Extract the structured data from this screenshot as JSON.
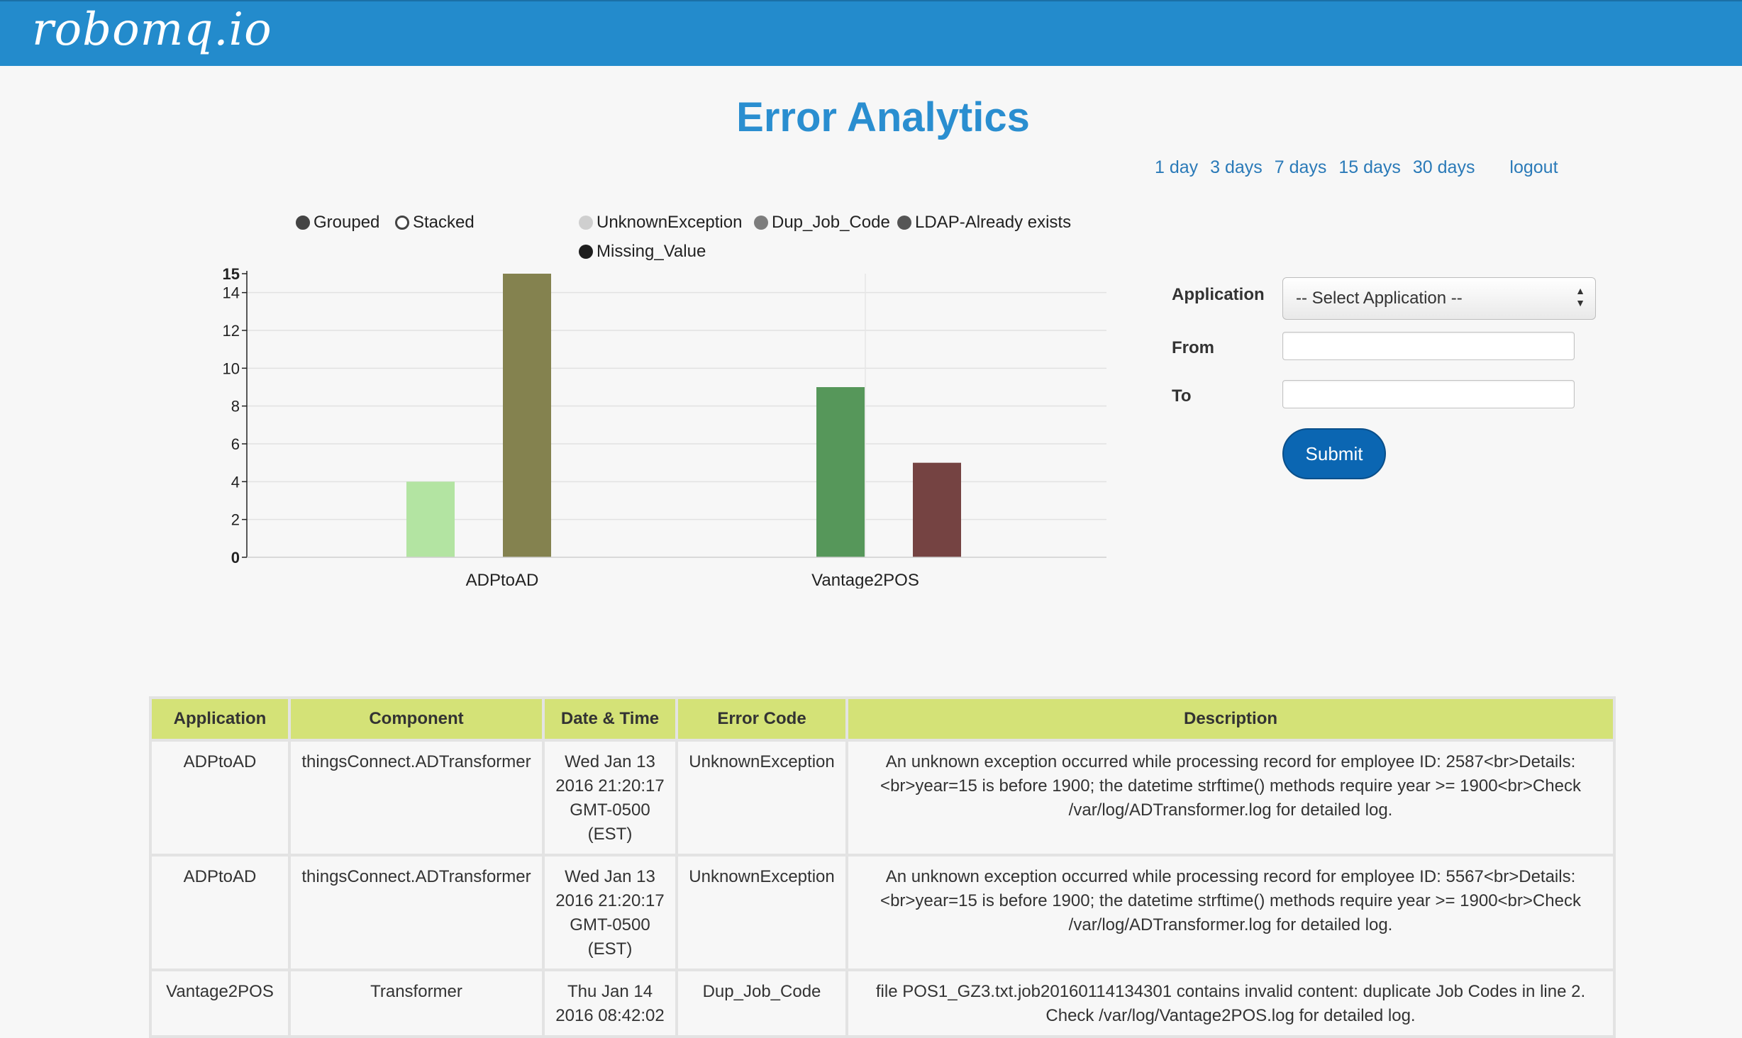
{
  "header": {
    "brand": "robomq.io"
  },
  "page": {
    "title": "Error Analytics"
  },
  "range_links": {
    "day1": "1 day",
    "day3": "3 days",
    "day7": "7 days",
    "day15": "15 days",
    "day30": "30 days",
    "logout": "logout"
  },
  "mode_toggle": {
    "grouped": "Grouped",
    "stacked": "Stacked"
  },
  "legend": {
    "unknown_exception": "UnknownException",
    "dup_job_code": "Dup_Job_Code",
    "ldap_exists": "LDAP-Already exists",
    "missing_value": "Missing_Value"
  },
  "colors": {
    "header_bg": "#238bcc",
    "title": "#2a8ed0",
    "bar_unknown_exception": "#b3e4a2",
    "bar_dup_job_code": "#84824f",
    "bar_ldap_exists": "#56975a",
    "bar_missing_value": "#754342",
    "table_header_bg": "#d4e277",
    "submit_bg": "#0b66b2"
  },
  "chart_data": {
    "type": "bar",
    "mode": "grouped",
    "categories": [
      "ADPtoAD",
      "Vantage2POS"
    ],
    "series": [
      {
        "name": "UnknownException",
        "values": [
          4,
          0
        ],
        "color": "#b3e4a2"
      },
      {
        "name": "Dup_Job_Code",
        "values": [
          15,
          0
        ],
        "color": "#84824f"
      },
      {
        "name": "LDAP-Already exists",
        "values": [
          0,
          9
        ],
        "color": "#56975a"
      },
      {
        "name": "Missing_Value",
        "values": [
          0,
          5
        ],
        "color": "#754342"
      }
    ],
    "bars": [
      {
        "category": "ADPtoAD",
        "series": "UnknownException",
        "value": 4,
        "color": "#b3e4a2",
        "slot": 1
      },
      {
        "category": "ADPtoAD",
        "series": "Dup_Job_Code",
        "value": 15,
        "color": "#84824f",
        "slot": 2
      },
      {
        "category": "Vantage2POS",
        "series": "LDAP-Already exists",
        "value": 9,
        "color": "#56975a",
        "slot": 0
      },
      {
        "category": "Vantage2POS",
        "series": "Missing_Value",
        "value": 5,
        "color": "#754342",
        "slot": 1
      }
    ],
    "yticks": [
      0,
      2,
      4,
      6,
      8,
      10,
      12,
      14,
      15
    ],
    "ylim": [
      0,
      15
    ],
    "xlabel": "",
    "ylabel": "",
    "legend": "top"
  },
  "form": {
    "application_label": "Application",
    "application_value": "-- Select Application --",
    "from_label": "From",
    "from_value": "",
    "to_label": "To",
    "to_value": "",
    "submit_label": "Submit"
  },
  "table": {
    "headers": [
      "Application",
      "Component",
      "Date & Time",
      "Error Code",
      "Description"
    ],
    "rows": [
      {
        "application": "ADPtoAD",
        "component": "thingsConnect.ADTransformer",
        "datetime": "Wed Jan 13 2016 21:20:17 GMT-0500 (EST)",
        "error_code": "UnknownException",
        "description": "An unknown exception occurred while processing record for employee ID: 2587<br>Details: <br>year=15 is before 1900; the datetime strftime() methods require year >= 1900<br>Check /var/log/ADTransformer.log for detailed log."
      },
      {
        "application": "ADPtoAD",
        "component": "thingsConnect.ADTransformer",
        "datetime": "Wed Jan 13 2016 21:20:17 GMT-0500 (EST)",
        "error_code": "UnknownException",
        "description": "An unknown exception occurred while processing record for employee ID: 5567<br>Details: <br>year=15 is before 1900; the datetime strftime() methods require year >= 1900<br>Check /var/log/ADTransformer.log for detailed log."
      },
      {
        "application": "Vantage2POS",
        "component": "Transformer",
        "datetime": "Thu Jan 14 2016 08:42:02",
        "error_code": "Dup_Job_Code",
        "description": "file POS1_GZ3.txt.job20160114134301 contains invalid content: duplicate Job Codes in line 2. Check /var/log/Vantage2POS.log for detailed log."
      }
    ]
  }
}
